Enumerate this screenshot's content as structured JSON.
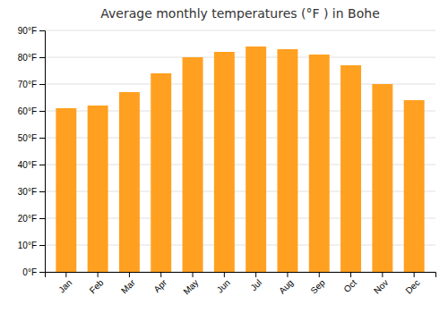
{
  "chart_data": {
    "type": "bar",
    "title": "Average monthly temperatures (°F ) in Bohe",
    "categories": [
      "Jan",
      "Feb",
      "Mar",
      "Apr",
      "May",
      "Jun",
      "Jul",
      "Aug",
      "Sep",
      "Oct",
      "Nov",
      "Dec"
    ],
    "values": [
      61,
      62,
      67,
      74,
      80,
      82,
      84,
      83,
      81,
      77,
      70,
      64
    ],
    "color": "#FFA020",
    "ylim": [
      0,
      90
    ],
    "yticks": [
      {
        "value": 0,
        "label": "0°F"
      },
      {
        "value": 10,
        "label": "10°F"
      },
      {
        "value": 20,
        "label": "20°F"
      },
      {
        "value": 30,
        "label": "30°F"
      },
      {
        "value": 40,
        "label": "40°F"
      },
      {
        "value": 50,
        "label": "50°F"
      },
      {
        "value": 60,
        "label": "60°F"
      },
      {
        "value": 70,
        "label": "70°F"
      },
      {
        "value": 80,
        "label": "80°F"
      },
      {
        "value": 90,
        "label": "90°F"
      }
    ],
    "grid": true
  }
}
